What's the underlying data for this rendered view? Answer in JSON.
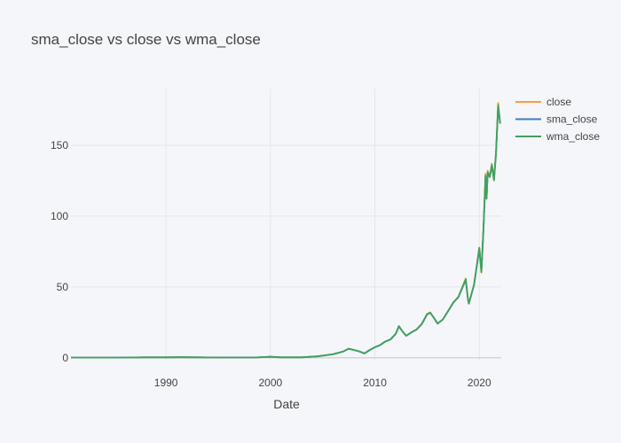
{
  "chart_data": {
    "type": "line",
    "title": "sma_close vs close vs wma_close",
    "xlabel": "Date",
    "ylabel": "",
    "xlim": [
      1980.9,
      2022.1
    ],
    "ylim": [
      -2,
      190
    ],
    "x_ticks": [
      {
        "value": 1990,
        "label": "1990"
      },
      {
        "value": 2000,
        "label": "2000"
      },
      {
        "value": 2010,
        "label": "2010"
      },
      {
        "value": 2020,
        "label": "2020"
      }
    ],
    "y_ticks": [
      {
        "value": 0,
        "label": "0"
      },
      {
        "value": 50,
        "label": "50"
      },
      {
        "value": 100,
        "label": "100"
      },
      {
        "value": 150,
        "label": "150"
      }
    ],
    "grid": true,
    "legend_position": "top-right",
    "x": [
      1980.9,
      1985.0,
      1988.0,
      1990.0,
      1991.5,
      1993.0,
      1995.0,
      1997.0,
      1998.5,
      2000.0,
      2001.0,
      2003.0,
      2004.5,
      2005.5,
      2006.0,
      2006.5,
      2007.0,
      2007.5,
      2008.0,
      2008.5,
      2009.0,
      2009.5,
      2010.0,
      2010.5,
      2011.0,
      2011.5,
      2012.0,
      2012.3,
      2012.7,
      2013.0,
      2013.5,
      2014.0,
      2014.5,
      2015.0,
      2015.3,
      2015.7,
      2016.0,
      2016.5,
      2017.0,
      2017.5,
      2018.0,
      2018.7,
      2018.9,
      2019.0,
      2019.5,
      2020.0,
      2020.2,
      2020.4,
      2020.6,
      2020.7,
      2020.8,
      2021.0,
      2021.2,
      2021.4,
      2021.6,
      2021.8,
      2022.0
    ],
    "series": [
      {
        "name": "close",
        "color": "#ff9a3c",
        "values": [
          0.1,
          0.1,
          0.3,
          0.3,
          0.4,
          0.3,
          0.2,
          0.2,
          0.2,
          0.7,
          0.3,
          0.3,
          1.0,
          2.0,
          2.5,
          3.5,
          4.5,
          6.5,
          5.5,
          4.5,
          3.0,
          5.5,
          7.5,
          9.0,
          11.5,
          13.0,
          17.0,
          22.5,
          18.0,
          15.5,
          18.0,
          20.0,
          24.0,
          31.0,
          32.0,
          27.5,
          24.0,
          27.0,
          33.0,
          39.0,
          43.0,
          56.0,
          42.0,
          38.0,
          52.0,
          78.0,
          60.0,
          92.0,
          130.0,
          112.0,
          132.0,
          128.0,
          137.0,
          125.0,
          145.0,
          180.0,
          165.0
        ]
      },
      {
        "name": "sma_close",
        "color": "#3a7cc4",
        "values": [
          0.1,
          0.1,
          0.3,
          0.3,
          0.4,
          0.3,
          0.2,
          0.2,
          0.2,
          0.7,
          0.3,
          0.3,
          1.0,
          2.0,
          2.5,
          3.5,
          4.5,
          6.3,
          5.5,
          4.5,
          3.1,
          5.4,
          7.4,
          8.9,
          11.4,
          12.9,
          16.8,
          22.0,
          18.2,
          15.6,
          17.9,
          19.9,
          23.8,
          30.6,
          31.7,
          27.7,
          24.2,
          26.9,
          32.8,
          38.7,
          42.8,
          55.0,
          42.5,
          38.5,
          51.5,
          77.0,
          61.0,
          91.0,
          127.0,
          113.0,
          130.0,
          127.5,
          135.5,
          126.0,
          144.0,
          177.0,
          166.0
        ]
      },
      {
        "name": "wma_close",
        "color": "#3da35d",
        "values": [
          0.1,
          0.1,
          0.3,
          0.3,
          0.4,
          0.3,
          0.2,
          0.2,
          0.2,
          0.7,
          0.3,
          0.3,
          1.0,
          2.0,
          2.5,
          3.5,
          4.5,
          6.4,
          5.5,
          4.5,
          3.0,
          5.5,
          7.5,
          9.0,
          11.5,
          13.0,
          17.0,
          22.3,
          18.1,
          15.5,
          18.0,
          20.0,
          23.9,
          30.8,
          31.8,
          27.6,
          24.1,
          27.0,
          32.9,
          38.8,
          42.9,
          55.5,
          42.2,
          38.2,
          51.8,
          77.5,
          60.5,
          91.5,
          128.5,
          112.5,
          131.0,
          127.8,
          136.2,
          125.5,
          144.5,
          178.5,
          165.5
        ]
      }
    ]
  }
}
